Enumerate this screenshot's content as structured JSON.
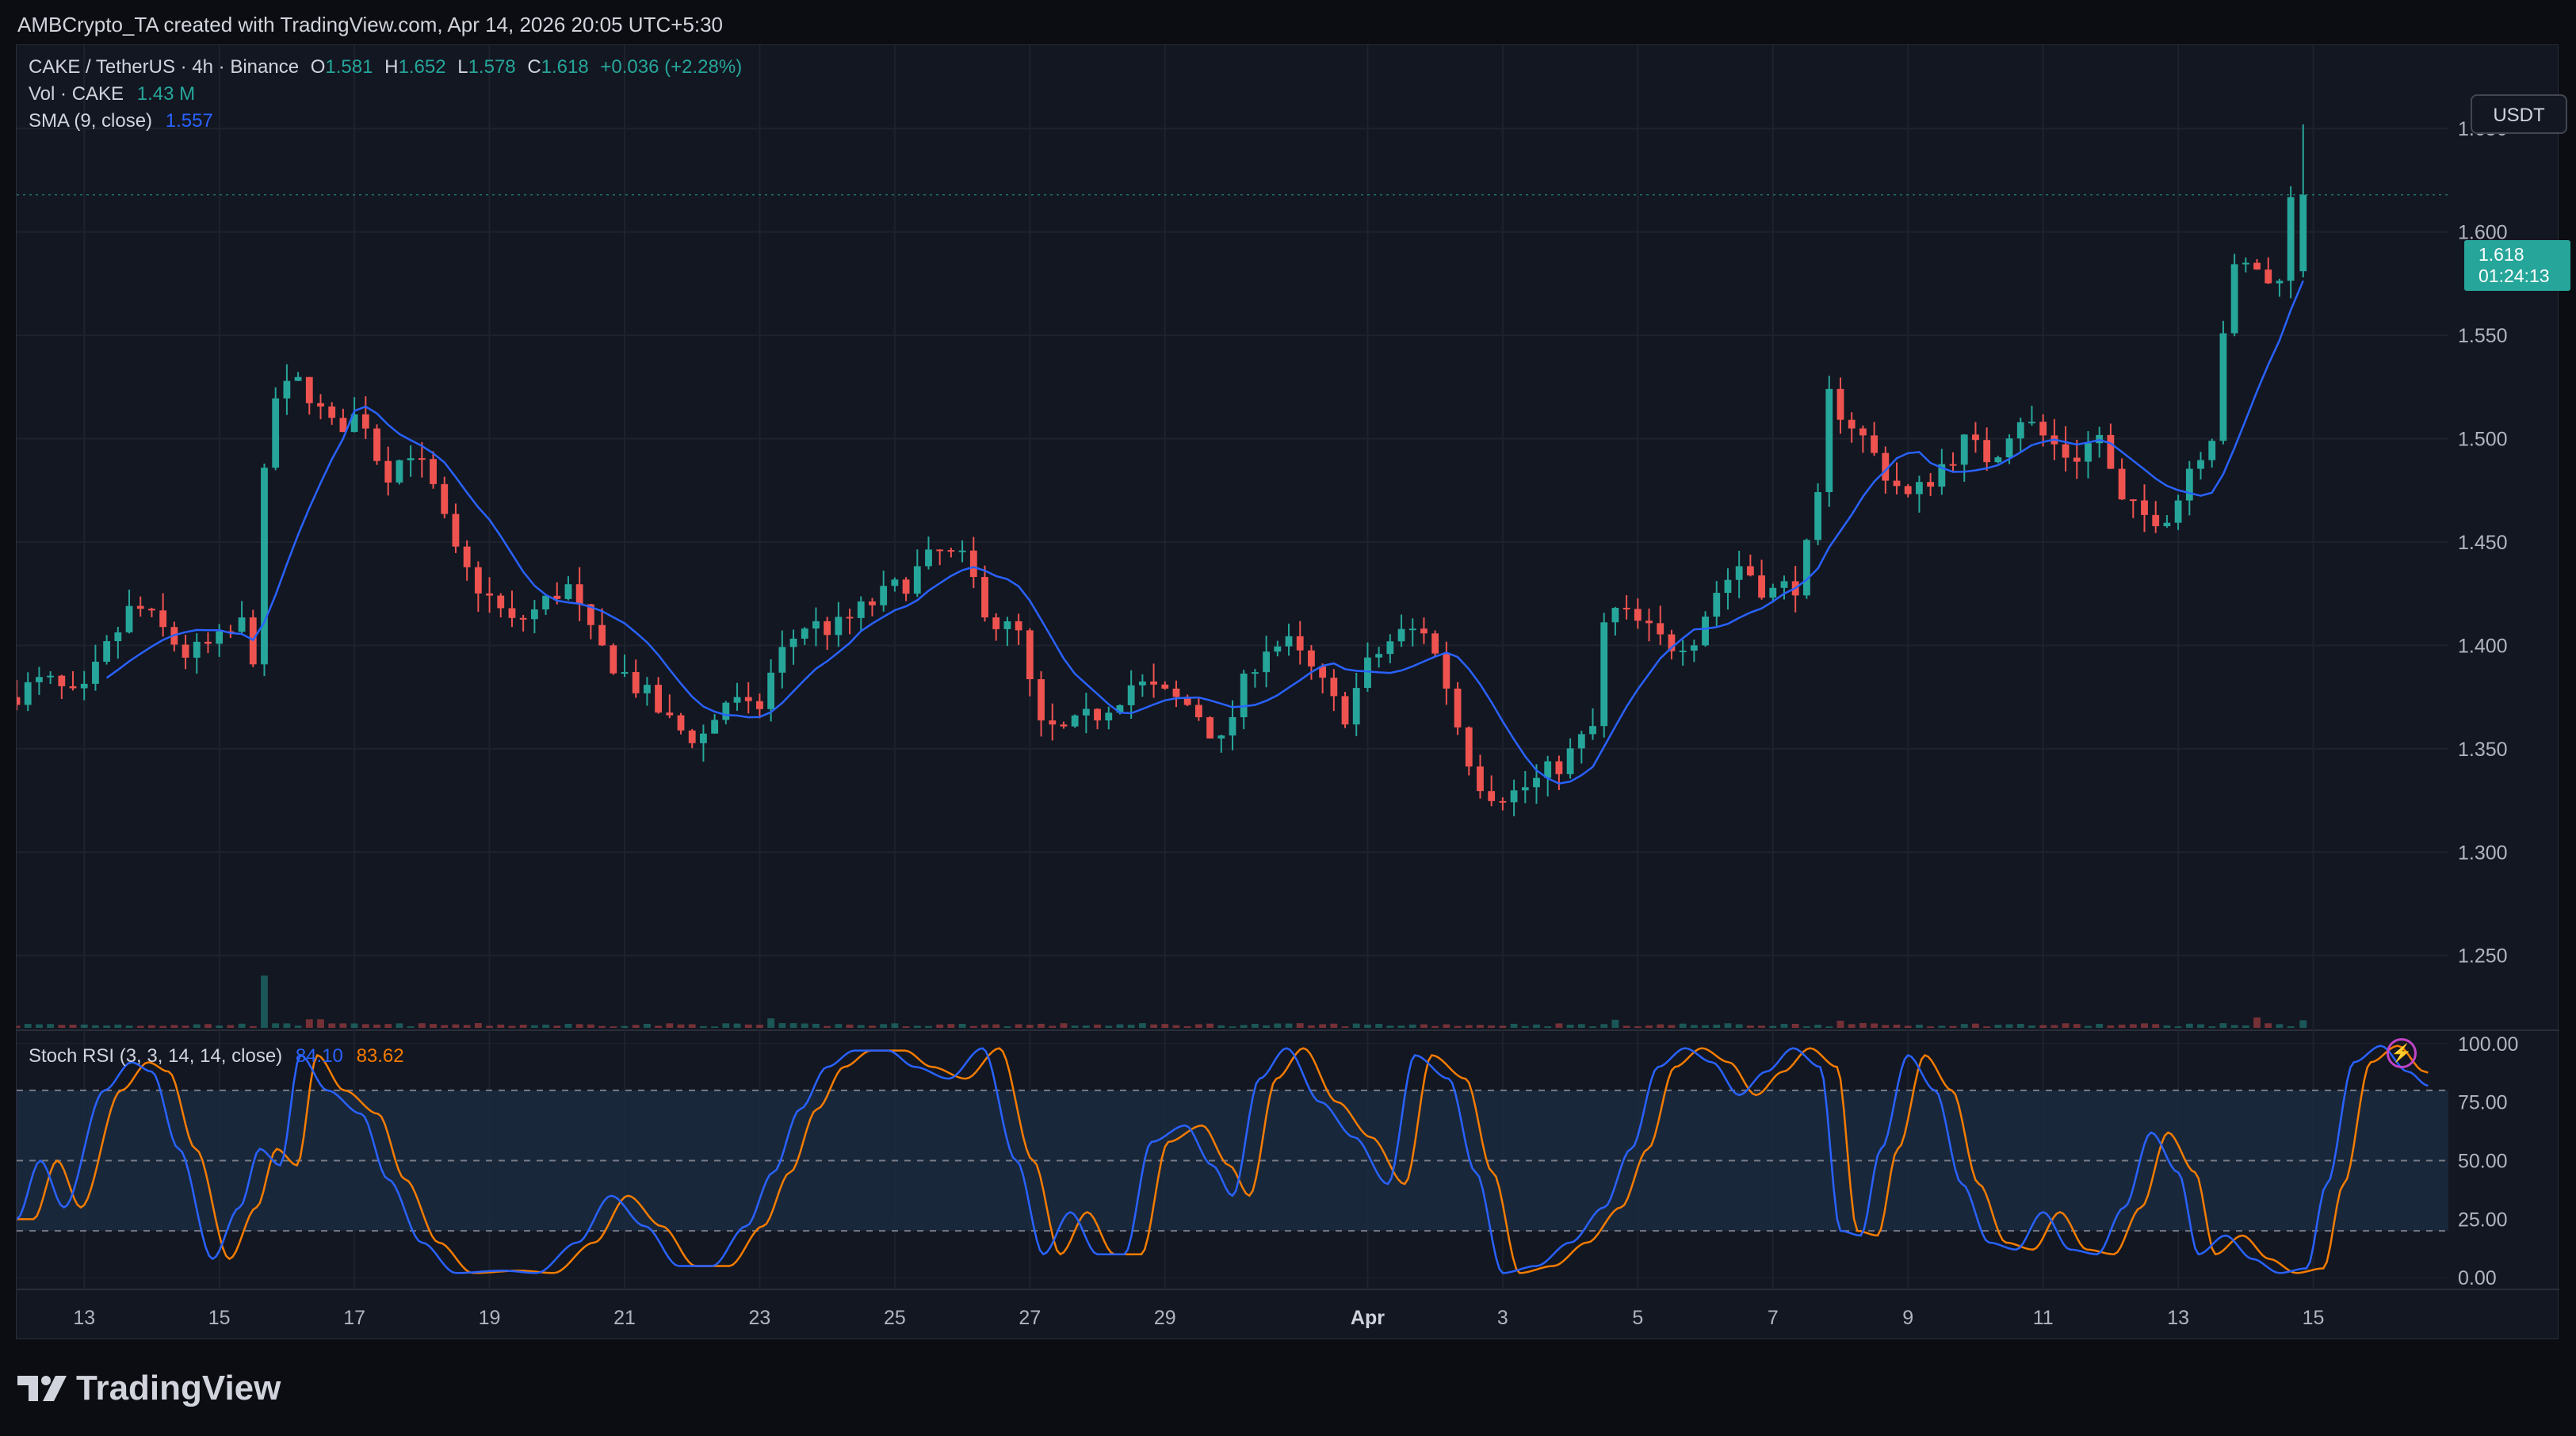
{
  "header": {
    "caption": "AMBCrypto_TA created with TradingView.com, Apr 14, 2026 20:05 UTC+5:30"
  },
  "legend": {
    "symbol": "CAKE / TetherUS · 4h · Binance",
    "open_label": "O",
    "open": "1.581",
    "high_label": "H",
    "high": "1.652",
    "low_label": "L",
    "low": "1.578",
    "close_label": "C",
    "close": "1.618",
    "change": "+0.036 (+2.28%)",
    "vol_label": "Vol · CAKE",
    "vol_value": "1.43 M",
    "sma_label": "SMA (9, close)",
    "sma_value": "1.557"
  },
  "price_axis": {
    "currency": "USDT",
    "last_price": "1.618",
    "countdown": "01:24:13"
  },
  "stoch": {
    "label": "Stoch RSI (3, 3, 14, 14, close)",
    "k_value": "84.10",
    "d_value": "83.62"
  },
  "footer": {
    "brand": "TradingView"
  },
  "colors": {
    "up": "#26a69a",
    "down": "#ef5350",
    "sma": "#2962ff",
    "k_line": "#2962ff",
    "d_line": "#f57c00",
    "band": "#1b2a40"
  },
  "icons": {
    "alert": "lightning-bolt-icon",
    "logo": "tradingview-logo-icon"
  },
  "chart_data": [
    {
      "type": "candlestick",
      "title": "CAKE / TetherUS · 4h · Binance",
      "interval": "4h",
      "x_ticks": [
        "13",
        "15",
        "17",
        "19",
        "21",
        "23",
        "25",
        "27",
        "29",
        "Apr",
        "3",
        "5",
        "7",
        "9",
        "11",
        "13",
        "15"
      ],
      "y_ticks": [
        "1.650",
        "1.600",
        "1.550",
        "1.500",
        "1.450",
        "1.400",
        "1.350",
        "1.300",
        "1.250"
      ],
      "ylim": [
        1.215,
        1.675
      ],
      "grid": true,
      "x_range_days": [
        12.0,
        46.0
      ],
      "anchors": [
        {
          "day": 12.0,
          "close": 1.375
        },
        {
          "day": 12.6,
          "close": 1.383
        },
        {
          "day": 13.1,
          "close": 1.372
        },
        {
          "day": 13.5,
          "close": 1.398
        },
        {
          "day": 13.9,
          "close": 1.42
        },
        {
          "day": 14.3,
          "close": 1.408
        },
        {
          "day": 14.7,
          "close": 1.395
        },
        {
          "day": 15.2,
          "close": 1.402
        },
        {
          "day": 15.5,
          "close": 1.41
        },
        {
          "day": 15.62,
          "close": 1.36
        },
        {
          "day": 15.75,
          "close": 1.46
        },
        {
          "day": 16.0,
          "close": 1.52
        },
        {
          "day": 16.4,
          "close": 1.528
        },
        {
          "day": 16.8,
          "close": 1.505
        },
        {
          "day": 17.3,
          "close": 1.512
        },
        {
          "day": 17.6,
          "close": 1.482
        },
        {
          "day": 18.0,
          "close": 1.495
        },
        {
          "day": 18.3,
          "close": 1.478
        },
        {
          "day": 18.7,
          "close": 1.44
        },
        {
          "day": 19.1,
          "close": 1.425
        },
        {
          "day": 19.5,
          "close": 1.41
        },
        {
          "day": 19.9,
          "close": 1.418
        },
        {
          "day": 20.3,
          "close": 1.43
        },
        {
          "day": 20.7,
          "close": 1.402
        },
        {
          "day": 21.1,
          "close": 1.388
        },
        {
          "day": 21.5,
          "close": 1.375
        },
        {
          "day": 21.9,
          "close": 1.36
        },
        {
          "day": 22.3,
          "close": 1.355
        },
        {
          "day": 22.7,
          "close": 1.375
        },
        {
          "day": 23.1,
          "close": 1.365
        },
        {
          "day": 23.4,
          "close": 1.392
        },
        {
          "day": 23.8,
          "close": 1.41
        },
        {
          "day": 24.3,
          "close": 1.408
        },
        {
          "day": 24.8,
          "close": 1.42
        },
        {
          "day": 25.3,
          "close": 1.43
        },
        {
          "day": 25.8,
          "close": 1.445
        },
        {
          "day": 26.2,
          "close": 1.44
        },
        {
          "day": 26.6,
          "close": 1.412
        },
        {
          "day": 27.0,
          "close": 1.405
        },
        {
          "day": 27.3,
          "close": 1.36
        },
        {
          "day": 27.7,
          "close": 1.358
        },
        {
          "day": 28.2,
          "close": 1.368
        },
        {
          "day": 28.7,
          "close": 1.382
        },
        {
          "day": 29.2,
          "close": 1.375
        },
        {
          "day": 29.6,
          "close": 1.37
        },
        {
          "day": 30.0,
          "close": 1.352
        },
        {
          "day": 30.3,
          "close": 1.378
        },
        {
          "day": 30.6,
          "close": 1.4
        },
        {
          "day": 31.0,
          "close": 1.4
        },
        {
          "day": 31.4,
          "close": 1.385
        },
        {
          "day": 31.8,
          "close": 1.365
        },
        {
          "day": 32.2,
          "close": 1.392
        },
        {
          "day": 32.6,
          "close": 1.405
        },
        {
          "day": 33.0,
          "close": 1.408
        },
        {
          "day": 33.3,
          "close": 1.385
        },
        {
          "day": 33.6,
          "close": 1.35
        },
        {
          "day": 33.9,
          "close": 1.33
        },
        {
          "day": 34.3,
          "close": 1.328
        },
        {
          "day": 34.7,
          "close": 1.335
        },
        {
          "day": 35.1,
          "close": 1.345
        },
        {
          "day": 35.5,
          "close": 1.36
        },
        {
          "day": 35.7,
          "close": 1.418
        },
        {
          "day": 36.1,
          "close": 1.412
        },
        {
          "day": 36.6,
          "close": 1.4
        },
        {
          "day": 37.0,
          "close": 1.405
        },
        {
          "day": 37.3,
          "close": 1.425
        },
        {
          "day": 37.7,
          "close": 1.44
        },
        {
          "day": 38.1,
          "close": 1.425
        },
        {
          "day": 38.5,
          "close": 1.43
        },
        {
          "day": 38.8,
          "close": 1.458
        },
        {
          "day": 39.0,
          "close": 1.52
        },
        {
          "day": 39.4,
          "close": 1.505
        },
        {
          "day": 39.8,
          "close": 1.485
        },
        {
          "day": 40.2,
          "close": 1.47
        },
        {
          "day": 40.6,
          "close": 1.485
        },
        {
          "day": 41.0,
          "close": 1.498
        },
        {
          "day": 41.4,
          "close": 1.49
        },
        {
          "day": 41.8,
          "close": 1.512
        },
        {
          "day": 42.2,
          "close": 1.5
        },
        {
          "day": 42.6,
          "close": 1.49
        },
        {
          "day": 43.0,
          "close": 1.502
        },
        {
          "day": 43.3,
          "close": 1.468
        },
        {
          "day": 43.7,
          "close": 1.462
        },
        {
          "day": 44.1,
          "close": 1.465
        },
        {
          "day": 44.3,
          "close": 1.485
        },
        {
          "day": 44.7,
          "close": 1.505
        },
        {
          "day": 44.9,
          "close": 1.578
        },
        {
          "day": 45.3,
          "close": 1.585
        },
        {
          "day": 45.6,
          "close": 1.568
        },
        {
          "day": 45.85,
          "close": 1.618
        }
      ],
      "last_candle": {
        "open": 1.581,
        "high": 1.652,
        "low": 1.578,
        "close": 1.618
      },
      "spike_day": 15.62,
      "sma": {
        "name": "SMA (9, close)",
        "last": 1.557
      }
    },
    {
      "type": "line",
      "title": "Stoch RSI (3, 3, 14, 14, close)",
      "y_ticks": [
        "100.00",
        "75.00",
        "50.00",
        "25.00",
        "0.00"
      ],
      "ylim": [
        -5,
        105
      ],
      "bands": [
        20,
        50,
        80
      ],
      "k_anchors": [
        [
          12.0,
          25
        ],
        [
          12.35,
          50
        ],
        [
          12.7,
          30
        ],
        [
          13.3,
          80
        ],
        [
          13.7,
          92
        ],
        [
          14.0,
          88
        ],
        [
          14.4,
          55
        ],
        [
          14.9,
          8
        ],
        [
          15.3,
          30
        ],
        [
          15.6,
          55
        ],
        [
          15.9,
          48
        ],
        [
          16.2,
          95
        ],
        [
          16.6,
          80
        ],
        [
          17.1,
          70
        ],
        [
          17.5,
          42
        ],
        [
          18.0,
          15
        ],
        [
          18.5,
          2
        ],
        [
          19.2,
          3
        ],
        [
          19.7,
          2
        ],
        [
          20.3,
          15
        ],
        [
          20.8,
          35
        ],
        [
          21.3,
          22
        ],
        [
          21.8,
          5
        ],
        [
          22.3,
          5
        ],
        [
          22.8,
          22
        ],
        [
          23.2,
          45
        ],
        [
          23.6,
          72
        ],
        [
          24.0,
          90
        ],
        [
          24.4,
          97
        ],
        [
          24.9,
          97
        ],
        [
          25.3,
          90
        ],
        [
          25.8,
          85
        ],
        [
          26.3,
          98
        ],
        [
          26.8,
          50
        ],
        [
          27.2,
          10
        ],
        [
          27.6,
          28
        ],
        [
          28.0,
          10
        ],
        [
          28.4,
          10
        ],
        [
          28.8,
          58
        ],
        [
          29.3,
          65
        ],
        [
          29.7,
          48
        ],
        [
          30.0,
          35
        ],
        [
          30.4,
          85
        ],
        [
          30.8,
          98
        ],
        [
          31.3,
          75
        ],
        [
          31.8,
          60
        ],
        [
          32.3,
          40
        ],
        [
          32.7,
          95
        ],
        [
          33.2,
          85
        ],
        [
          33.6,
          45
        ],
        [
          34.0,
          2
        ],
        [
          34.5,
          5
        ],
        [
          35.0,
          15
        ],
        [
          35.5,
          30
        ],
        [
          35.9,
          55
        ],
        [
          36.3,
          90
        ],
        [
          36.7,
          98
        ],
        [
          37.1,
          92
        ],
        [
          37.5,
          78
        ],
        [
          37.9,
          88
        ],
        [
          38.3,
          98
        ],
        [
          38.7,
          90
        ],
        [
          39.0,
          20
        ],
        [
          39.3,
          18
        ],
        [
          39.6,
          55
        ],
        [
          40.0,
          95
        ],
        [
          40.4,
          80
        ],
        [
          40.8,
          40
        ],
        [
          41.2,
          15
        ],
        [
          41.6,
          12
        ],
        [
          42.0,
          28
        ],
        [
          42.4,
          12
        ],
        [
          42.8,
          10
        ],
        [
          43.2,
          30
        ],
        [
          43.6,
          62
        ],
        [
          44.0,
          45
        ],
        [
          44.3,
          10
        ],
        [
          44.7,
          18
        ],
        [
          45.1,
          8
        ],
        [
          45.5,
          2
        ],
        [
          45.9,
          4
        ],
        [
          46.2,
          40
        ],
        [
          46.6,
          92
        ],
        [
          47.0,
          99
        ],
        [
          47.4,
          88
        ],
        [
          47.7,
          82
        ]
      ],
      "d_lag_days": 0.25,
      "series": [
        {
          "name": "K",
          "last": 84.1
        },
        {
          "name": "D",
          "last": 83.62
        }
      ]
    }
  ]
}
